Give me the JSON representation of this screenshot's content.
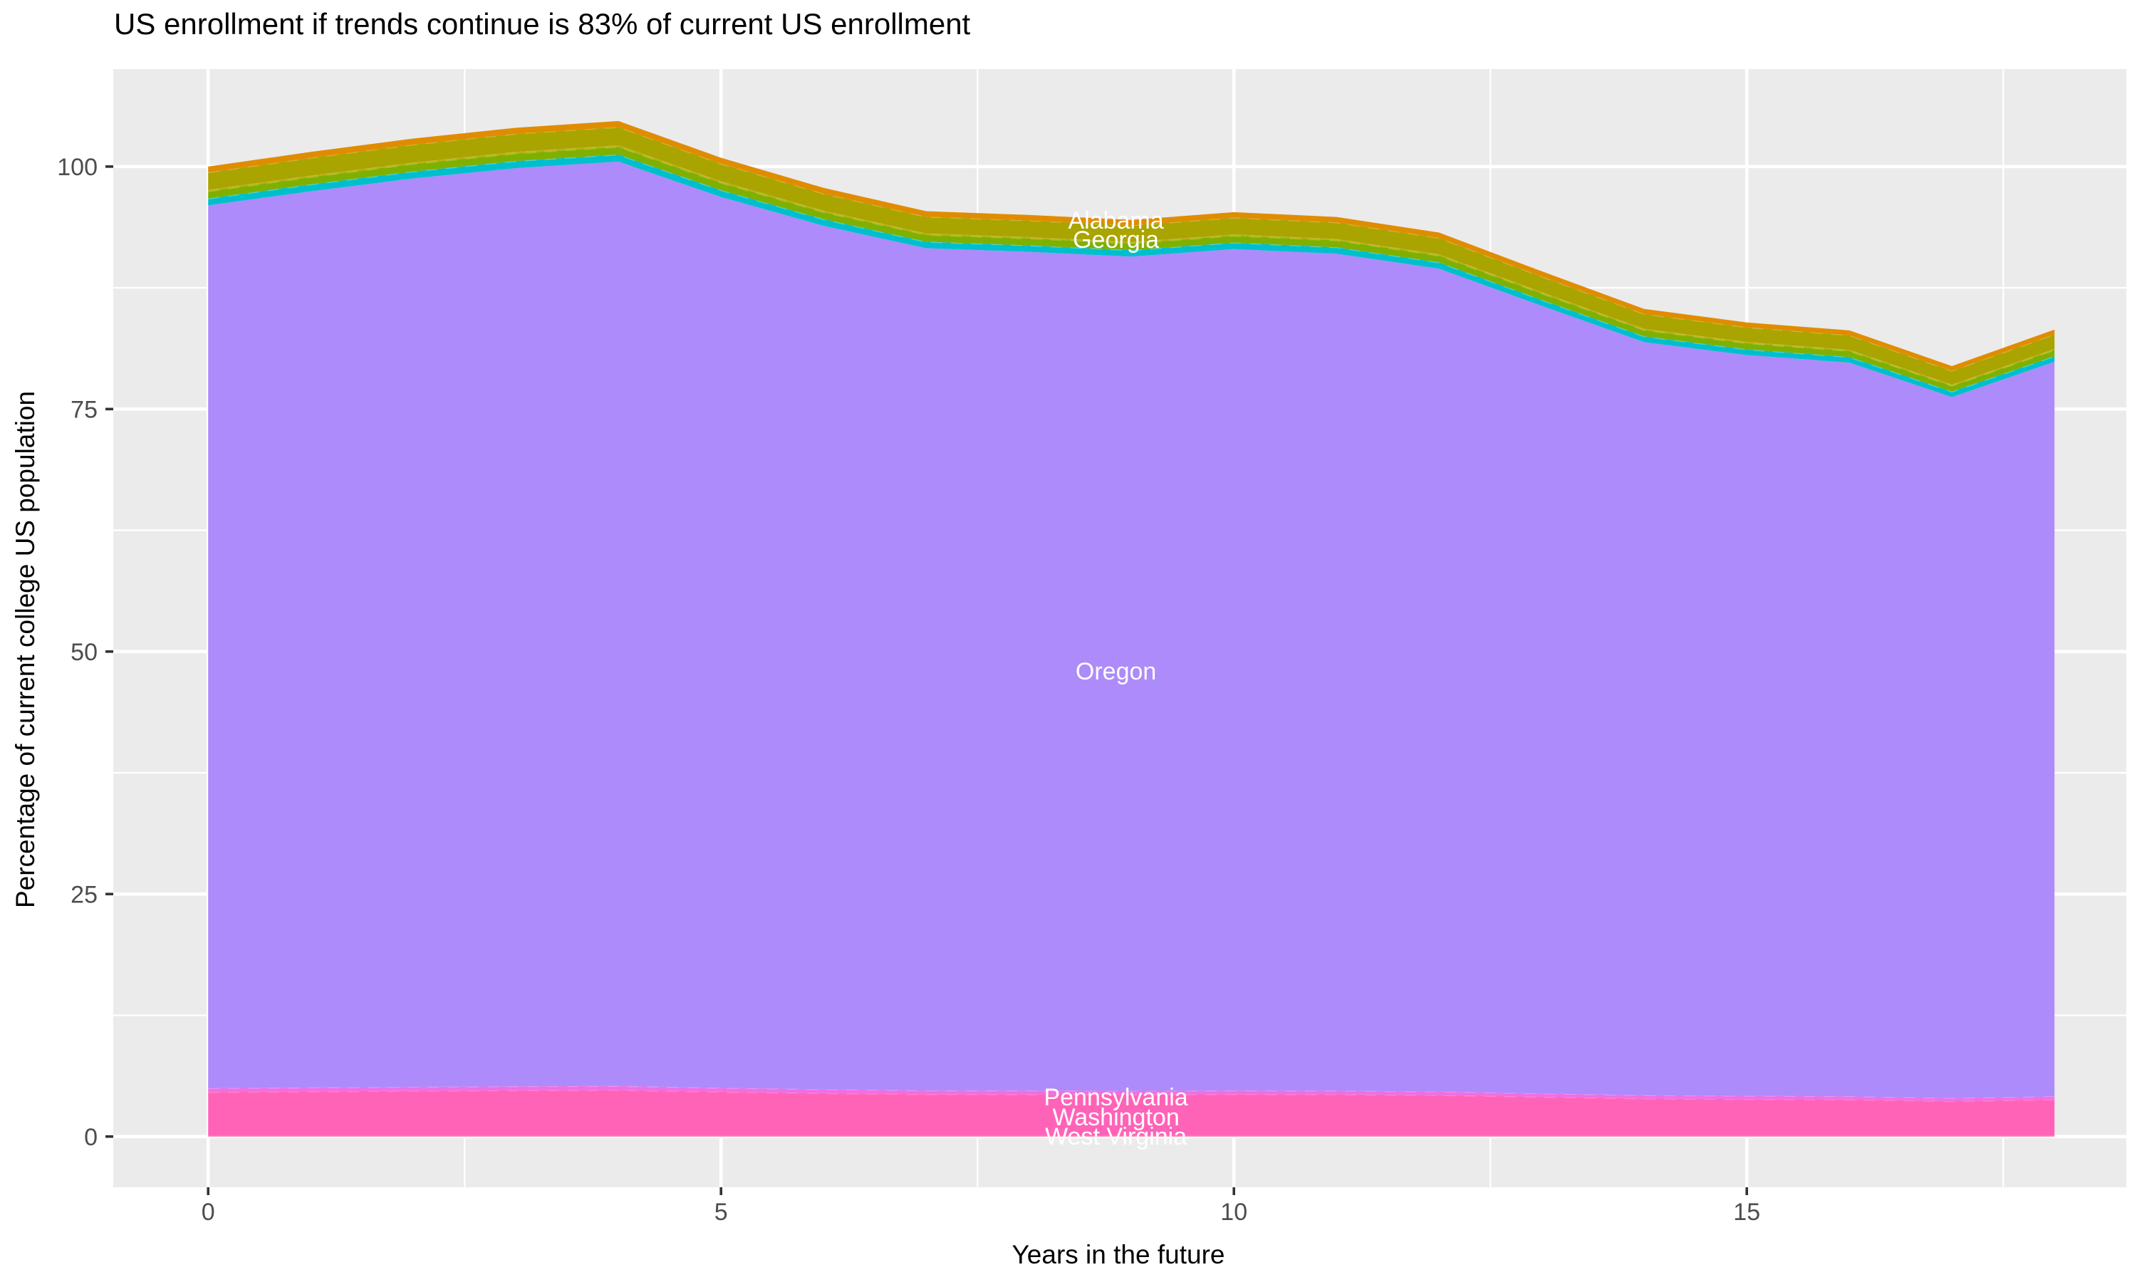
{
  "title": "US enrollment if trends continue is 83% of current US enrollment",
  "chart_data": {
    "type": "area",
    "stacked": true,
    "title": "US enrollment if trends continue is 83% of current US enrollment",
    "xlabel": "Years in the future",
    "ylabel": "Percentage of current college US population",
    "x": [
      0,
      1,
      2,
      3,
      4,
      5,
      6,
      7,
      8,
      9,
      10,
      11,
      12,
      13,
      14,
      15,
      16,
      17,
      18
    ],
    "x_ticks": [
      0,
      5,
      10,
      15
    ],
    "y_ticks": [
      0,
      25,
      50,
      75,
      100
    ],
    "x_minor_ticks": [
      2.5,
      7.5,
      12.5,
      17.5
    ],
    "y_minor_ticks": [
      12.5,
      37.5,
      62.5,
      87.5
    ],
    "xlim": [
      -0.925,
      18.7
    ],
    "ylim": [
      -5.23,
      110.05
    ],
    "grid": true,
    "legend": "none",
    "panel_bg": "#EBEBEB",
    "grid_color": "#FFFFFF",
    "tick_color": "#333333",
    "tick_label_color": "#4D4D4D",
    "total_by_year": [
      100.0,
      101.5,
      102.9,
      104.0,
      104.7,
      100.9,
      97.8,
      95.4,
      95.0,
      94.5,
      95.3,
      94.8,
      93.2,
      89.2,
      85.3,
      83.9,
      83.1,
      79.4,
      83.2
    ],
    "series": [
      {
        "name": "West Virginia",
        "color": "#FF6C92",
        "edge": null,
        "values": [
          0.08,
          0.08,
          0.08,
          0.08,
          0.08,
          0.08,
          0.08,
          0.08,
          0.08,
          0.08,
          0.08,
          0.08,
          0.08,
          0.08,
          0.08,
          0.08,
          0.08,
          0.08,
          0.08
        ]
      },
      {
        "name": "Washington",
        "color": "#FF63B8",
        "edge": "#ff9bd4",
        "values": [
          4.5,
          4.57,
          4.63,
          4.68,
          4.71,
          4.54,
          4.4,
          4.29,
          4.28,
          4.25,
          4.29,
          4.27,
          4.19,
          4.01,
          3.84,
          3.78,
          3.74,
          3.57,
          3.74
        ]
      },
      {
        "name": "Pennsylvania",
        "color": "#ED6FE5",
        "edge": "#f7a8f0",
        "values": [
          0.4,
          0.41,
          0.41,
          0.42,
          0.42,
          0.4,
          0.39,
          0.38,
          0.38,
          0.38,
          0.38,
          0.38,
          0.37,
          0.36,
          0.34,
          0.34,
          0.33,
          0.32,
          0.33
        ]
      },
      {
        "name": "Oregon",
        "color": "#AD8BFA",
        "edge": null,
        "values": [
          91.02,
          92.39,
          93.66,
          94.66,
          95.3,
          91.84,
          89.02,
          86.83,
          86.47,
          86.01,
          86.74,
          86.29,
          84.83,
          81.19,
          77.64,
          76.37,
          75.64,
          72.27,
          75.73
        ]
      },
      {
        "name": "band-cyan-unlabeled",
        "color": "#00BFCC",
        "edge": "#7fe8ee",
        "values": [
          0.7,
          0.71,
          0.72,
          0.73,
          0.73,
          0.71,
          0.68,
          0.67,
          0.67,
          0.66,
          0.67,
          0.66,
          0.65,
          0.62,
          0.6,
          0.59,
          0.58,
          0.56,
          0.58
        ]
      },
      {
        "name": "Georgia",
        "color": "#7FB000",
        "edge": "#b6d44f",
        "values": [
          0.75,
          0.76,
          0.77,
          0.78,
          0.79,
          0.76,
          0.73,
          0.72,
          0.71,
          0.71,
          0.71,
          0.71,
          0.7,
          0.67,
          0.64,
          0.63,
          0.62,
          0.6,
          0.62
        ]
      },
      {
        "name": "band-olive-sliver-unlabeled",
        "color": "#BBAD14",
        "edge": "#d6c84a",
        "values": [
          0.15,
          0.15,
          0.15,
          0.16,
          0.16,
          0.15,
          0.15,
          0.14,
          0.14,
          0.14,
          0.14,
          0.14,
          0.14,
          0.13,
          0.13,
          0.13,
          0.12,
          0.12,
          0.12
        ]
      },
      {
        "name": "Alabama",
        "color": "#A9A400",
        "edge": "#e5c75c",
        "values": [
          1.8,
          1.83,
          1.85,
          1.87,
          1.88,
          1.82,
          1.76,
          1.72,
          1.71,
          1.7,
          1.72,
          1.71,
          1.68,
          1.61,
          1.54,
          1.51,
          1.5,
          1.43,
          1.5
        ]
      },
      {
        "name": "band-orange-unlabeled",
        "color": "#E08C00",
        "edge": null,
        "values": [
          0.6,
          0.61,
          0.62,
          0.62,
          0.63,
          0.61,
          0.59,
          0.57,
          0.57,
          0.57,
          0.57,
          0.57,
          0.56,
          0.54,
          0.51,
          0.5,
          0.5,
          0.48,
          0.5
        ]
      }
    ],
    "area_labels": [
      {
        "text": "Alabama",
        "x": 8.85,
        "y": 94.5
      },
      {
        "text": "Georgia",
        "x": 8.85,
        "y": 92.5
      },
      {
        "text": "Oregon",
        "x": 8.85,
        "y": 48.0
      },
      {
        "text": "Pennsylvania",
        "x": 8.85,
        "y": 4.1
      },
      {
        "text": "Washington",
        "x": 8.85,
        "y": 2.05
      },
      {
        "text": "West Virginia",
        "x": 8.85,
        "y": 0.07
      }
    ],
    "area_label_color": "#FFFFFF"
  }
}
